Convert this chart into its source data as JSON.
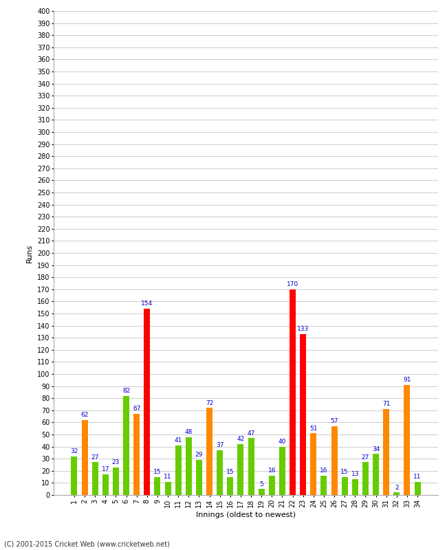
{
  "xlabel": "Innings (oldest to newest)",
  "ylabel": "Runs",
  "footer": "(C) 2001-2015 Cricket Web (www.cricketweb.net)",
  "ylim": [
    0,
    400
  ],
  "innings": [
    1,
    2,
    3,
    4,
    5,
    6,
    7,
    8,
    9,
    10,
    11,
    12,
    13,
    14,
    15,
    16,
    17,
    18,
    19,
    20,
    21,
    22,
    23,
    24,
    25,
    26,
    27,
    28,
    29,
    30,
    31,
    32,
    33,
    34
  ],
  "values": [
    32,
    62,
    27,
    17,
    23,
    82,
    67,
    154,
    15,
    11,
    41,
    48,
    29,
    72,
    37,
    15,
    42,
    47,
    5,
    16,
    40,
    170,
    133,
    51,
    16,
    57,
    15,
    13,
    27,
    34,
    71,
    2,
    91,
    11
  ],
  "colors": [
    "#66cc00",
    "#ff8800",
    "#66cc00",
    "#66cc00",
    "#66cc00",
    "#66cc00",
    "#ff8800",
    "#ff0000",
    "#66cc00",
    "#66cc00",
    "#66cc00",
    "#66cc00",
    "#66cc00",
    "#ff8800",
    "#66cc00",
    "#66cc00",
    "#66cc00",
    "#66cc00",
    "#66cc00",
    "#66cc00",
    "#66cc00",
    "#ff0000",
    "#ff0000",
    "#ff8800",
    "#66cc00",
    "#ff8800",
    "#66cc00",
    "#66cc00",
    "#66cc00",
    "#66cc00",
    "#ff8800",
    "#66cc00",
    "#ff8800",
    "#66cc00"
  ],
  "label_color": "#0000cc",
  "bg_color": "#ffffff",
  "grid_color": "#cccccc",
  "label_fontsize": 6.5,
  "axis_label_fontsize": 8,
  "tick_fontsize": 7,
  "bar_width": 0.6,
  "footer_text": "(C) 2001-2015 Cricket Web (www.cricketweb.net)"
}
